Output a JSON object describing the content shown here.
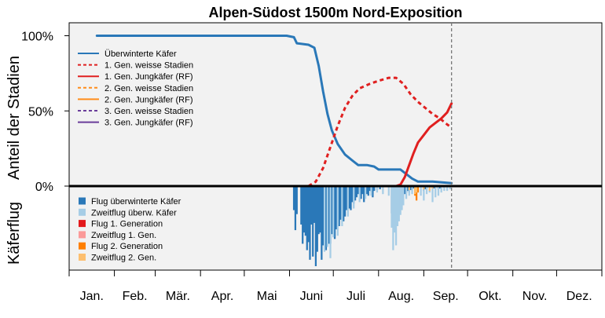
{
  "chart_data": {
    "type": "line",
    "title": "Alpen-Südost 1500m Nord-Exposition",
    "ylabel_top": "Anteil der Stadien",
    "ylabel_bottom": "Käferflug",
    "ytick_labels": [
      "100%",
      "50%",
      "0%"
    ],
    "yticks": [
      100,
      50,
      0
    ],
    "ylim": [
      0,
      108
    ],
    "months": [
      "Jan.",
      "Feb.",
      "Mär.",
      "Apr.",
      "Mai",
      "Juni",
      "Juli",
      "Aug.",
      "Sep.",
      "Okt.",
      "Nov.",
      "Dez."
    ],
    "xlim_day": [
      1,
      366
    ],
    "current_day": 263,
    "grid": false,
    "legend_placement": "top-left",
    "series": [
      {
        "name": "Überwinterte Käfer",
        "color": "#2a78b8",
        "dash": "",
        "points": [
          [
            20,
            100
          ],
          [
            150,
            100
          ],
          [
            155,
            99
          ],
          [
            157,
            95
          ],
          [
            165,
            94
          ],
          [
            169,
            92
          ],
          [
            172,
            80
          ],
          [
            175,
            63
          ],
          [
            178,
            48
          ],
          [
            181,
            37
          ],
          [
            185,
            28
          ],
          [
            190,
            21
          ],
          [
            195,
            17
          ],
          [
            199,
            14
          ],
          [
            205,
            14
          ],
          [
            210,
            13
          ],
          [
            213,
            11
          ],
          [
            220,
            11
          ],
          [
            228,
            11
          ],
          [
            232,
            8
          ],
          [
            236,
            5
          ],
          [
            240,
            3
          ],
          [
            250,
            3
          ],
          [
            263,
            2
          ]
        ]
      },
      {
        "name": "1. Gen. weisse Stadien",
        "color": "#e02020",
        "dash": "5,4",
        "points": [
          [
            165,
            0
          ],
          [
            170,
            3
          ],
          [
            175,
            12
          ],
          [
            180,
            26
          ],
          [
            185,
            40
          ],
          [
            190,
            52
          ],
          [
            195,
            60
          ],
          [
            200,
            65
          ],
          [
            207,
            68
          ],
          [
            213,
            70
          ],
          [
            220,
            72
          ],
          [
            225,
            72
          ],
          [
            230,
            68
          ],
          [
            235,
            61
          ],
          [
            240,
            56
          ],
          [
            245,
            52
          ],
          [
            250,
            48
          ],
          [
            255,
            45
          ],
          [
            260,
            41
          ],
          [
            263,
            39
          ]
        ]
      },
      {
        "name": "1. Gen. Jungkäfer (RF)",
        "color": "#e02020",
        "dash": "",
        "points": [
          [
            20,
            0
          ],
          [
            225,
            0
          ],
          [
            228,
            1
          ],
          [
            231,
            6
          ],
          [
            234,
            14
          ],
          [
            237,
            22
          ],
          [
            240,
            29
          ],
          [
            244,
            34
          ],
          [
            248,
            39
          ],
          [
            252,
            42
          ],
          [
            256,
            45
          ],
          [
            260,
            49
          ],
          [
            263,
            55
          ]
        ]
      },
      {
        "name": "2. Gen. weisse Stadien",
        "color": "#ff8c1a",
        "dash": "5,4",
        "points": []
      },
      {
        "name": "2. Gen. Jungkäfer (RF)",
        "color": "#ff8c1a",
        "dash": "",
        "points": []
      },
      {
        "name": "3. Gen. weisse Stadien",
        "color": "#6a3d9a",
        "dash": "5,4",
        "points": []
      },
      {
        "name": "3. Gen. Jungkäfer (RF)",
        "color": "#6a3d9a",
        "dash": "",
        "points": []
      }
    ],
    "flight_series": [
      {
        "name": "Flug überwinterte Käfer",
        "color": "#2a78b8",
        "points": [
          [
            155,
            30
          ],
          [
            156,
            55
          ],
          [
            157,
            35
          ],
          [
            160,
            48
          ],
          [
            161,
            72
          ],
          [
            162,
            58
          ],
          [
            163,
            62
          ],
          [
            164,
            80
          ],
          [
            165,
            70
          ],
          [
            166,
            92
          ],
          [
            167,
            48
          ],
          [
            168,
            88
          ],
          [
            169,
            46
          ],
          [
            170,
            100
          ],
          [
            171,
            82
          ],
          [
            172,
            60
          ],
          [
            173,
            58
          ],
          [
            174,
            92
          ],
          [
            175,
            74
          ],
          [
            176,
            70
          ],
          [
            177,
            80
          ],
          [
            178,
            68
          ],
          [
            179,
            72
          ],
          [
            180,
            72
          ],
          [
            181,
            60
          ],
          [
            182,
            56
          ],
          [
            183,
            66
          ],
          [
            184,
            54
          ],
          [
            185,
            48
          ],
          [
            186,
            50
          ],
          [
            187,
            42
          ],
          [
            188,
            40
          ],
          [
            189,
            44
          ],
          [
            190,
            38
          ],
          [
            191,
            30
          ],
          [
            192,
            26
          ],
          [
            193,
            28
          ],
          [
            194,
            30
          ],
          [
            195,
            20
          ],
          [
            196,
            22
          ],
          [
            197,
            18
          ],
          [
            198,
            14
          ],
          [
            199,
            10
          ],
          [
            200,
            8
          ],
          [
            201,
            16
          ],
          [
            202,
            10
          ],
          [
            203,
            20
          ],
          [
            204,
            9
          ],
          [
            205,
            10
          ],
          [
            206,
            12
          ],
          [
            207,
            6
          ],
          [
            208,
            7
          ],
          [
            209,
            14
          ],
          [
            210,
            6
          ],
          [
            212,
            5
          ],
          [
            214,
            4
          ],
          [
            222,
            34
          ],
          [
            223,
            22
          ],
          [
            224,
            26
          ],
          [
            225,
            20
          ],
          [
            226,
            18
          ],
          [
            227,
            16
          ],
          [
            228,
            24
          ],
          [
            229,
            14
          ],
          [
            230,
            12
          ],
          [
            231,
            10
          ],
          [
            232,
            8
          ],
          [
            233,
            6
          ],
          [
            234,
            8
          ],
          [
            235,
            5
          ],
          [
            236,
            4
          ],
          [
            237,
            3
          ],
          [
            238,
            3
          ],
          [
            244,
            6
          ],
          [
            245,
            4
          ],
          [
            246,
            3
          ],
          [
            250,
            3
          ],
          [
            251,
            3
          ],
          [
            254,
            4
          ],
          [
            255,
            3
          ],
          [
            258,
            2
          ]
        ]
      },
      {
        "name": "Zweitflug überw. Käfer",
        "color": "#a6cde6",
        "points": [
          [
            176,
            82
          ],
          [
            178,
            76
          ],
          [
            180,
            90
          ],
          [
            182,
            64
          ],
          [
            185,
            62
          ],
          [
            188,
            50
          ],
          [
            192,
            38
          ],
          [
            196,
            28
          ],
          [
            200,
            20
          ],
          [
            204,
            16
          ],
          [
            208,
            12
          ],
          [
            212,
            8
          ],
          [
            216,
            10
          ],
          [
            220,
            12
          ],
          [
            222,
            52
          ],
          [
            223,
            80
          ],
          [
            224,
            58
          ],
          [
            225,
            74
          ],
          [
            226,
            50
          ],
          [
            227,
            44
          ],
          [
            228,
            36
          ],
          [
            229,
            30
          ],
          [
            230,
            24
          ],
          [
            232,
            16
          ],
          [
            234,
            12
          ],
          [
            236,
            10
          ],
          [
            238,
            8
          ],
          [
            242,
            12
          ],
          [
            244,
            18
          ],
          [
            246,
            10
          ],
          [
            248,
            8
          ],
          [
            250,
            20
          ],
          [
            252,
            14
          ],
          [
            254,
            12
          ],
          [
            256,
            8
          ],
          [
            258,
            6
          ],
          [
            260,
            6
          ],
          [
            262,
            4
          ]
        ]
      },
      {
        "name": "Flug 1. Generation",
        "color": "#e31a1c",
        "points": []
      },
      {
        "name": "Zweitflug 1. Gen.",
        "color": "#fb9a99",
        "points": []
      },
      {
        "name": "Flug 2. Generation",
        "color": "#ff7f00",
        "points": [
          [
            238,
            12
          ],
          [
            239,
            18
          ],
          [
            240,
            8
          ]
        ]
      },
      {
        "name": "Zweitflug 2. Gen.",
        "color": "#fdbf6f",
        "points": [
          [
            234,
            5
          ],
          [
            238,
            10
          ],
          [
            239,
            8
          ],
          [
            244,
            4
          ],
          [
            248,
            6
          ],
          [
            250,
            3
          ]
        ]
      }
    ]
  }
}
